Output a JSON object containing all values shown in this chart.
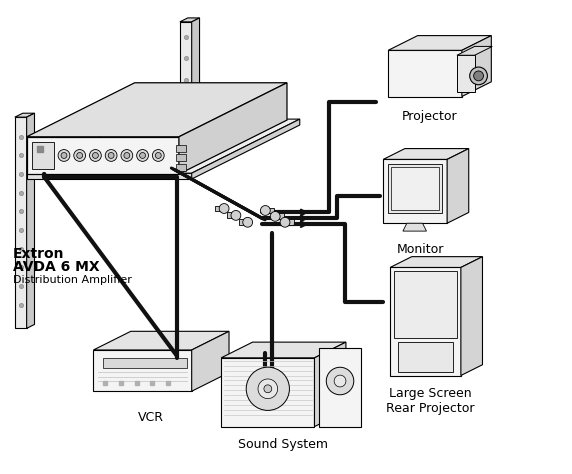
{
  "background_color": "#ffffff",
  "label_extron": "Extron",
  "label_avda": "AVDA 6 MX",
  "label_dist": "Distribution Amplifier",
  "label_projector": "Projector",
  "label_monitor": "Monitor",
  "label_large_screen": "Large Screen\nRear Projector",
  "label_vcr": "VCR",
  "label_sound": "Sound System",
  "fc_main": "#f8f8f8",
  "fc_top": "#e0e0e0",
  "fc_side": "#cccccc",
  "fc_shelf": "#e8e8e8",
  "fc_shelf_top": "#d8d8d8",
  "fc_shelf_side": "#c0c0c0"
}
